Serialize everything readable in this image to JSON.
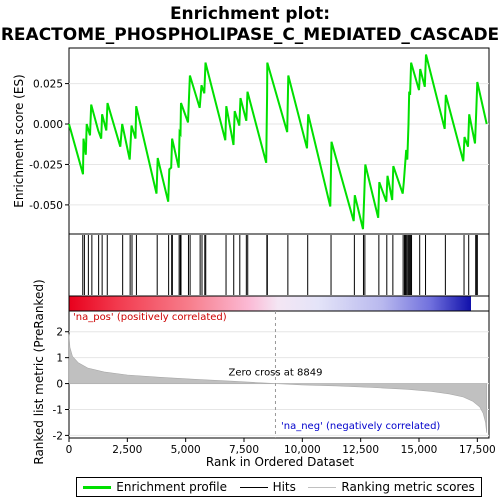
{
  "chart_data": {
    "type": "line",
    "title_line1": "Enrichment plot:",
    "title_line2": "REACTOME_PHOSPHOLIPASE_C_MEDIATED_CASCADE",
    "top_panel": {
      "ylabel": "Enrichment score (ES)",
      "ylim": [
        -0.068,
        0.047
      ],
      "yticks": [
        0.025,
        0.0,
        -0.025,
        -0.05
      ],
      "ytick_labels": [
        "0.025",
        "0.000",
        "-0.025",
        "-0.050"
      ],
      "series": {
        "name": "Enrichment profile",
        "color": "#00e000",
        "points": [
          [
            0,
            0.0
          ],
          [
            600,
            -0.031
          ],
          [
            620,
            -0.009
          ],
          [
            720,
            -0.019
          ],
          [
            760,
            0.0
          ],
          [
            900,
            -0.007
          ],
          [
            950,
            0.012
          ],
          [
            1250,
            -0.004
          ],
          [
            1380,
            -0.009
          ],
          [
            1420,
            0.006
          ],
          [
            1600,
            -0.004
          ],
          [
            1650,
            0.013
          ],
          [
            2200,
            -0.014
          ],
          [
            2280,
            0.0
          ],
          [
            2600,
            -0.022
          ],
          [
            2680,
            -0.001
          ],
          [
            2850,
            -0.009
          ],
          [
            2880,
            0.011
          ],
          [
            3750,
            -0.043
          ],
          [
            3800,
            -0.021
          ],
          [
            4250,
            -0.048
          ],
          [
            4300,
            -0.028
          ],
          [
            4380,
            -0.027
          ],
          [
            4420,
            -0.009
          ],
          [
            4700,
            -0.027
          ],
          [
            4740,
            -0.005
          ],
          [
            4780,
            -0.006
          ],
          [
            4800,
            0.013
          ],
          [
            5100,
            0.001
          ],
          [
            5180,
            0.03
          ],
          [
            5600,
            0.01
          ],
          [
            5680,
            0.024
          ],
          [
            5800,
            0.019
          ],
          [
            5850,
            0.038
          ],
          [
            6700,
            -0.01
          ],
          [
            6740,
            0.011
          ],
          [
            7050,
            -0.013
          ],
          [
            7100,
            0.008
          ],
          [
            7300,
            -0.001
          ],
          [
            7350,
            0.016
          ],
          [
            7600,
            0.002
          ],
          [
            7650,
            0.02
          ],
          [
            8450,
            -0.024
          ],
          [
            8490,
            0.018
          ],
          [
            8500,
            0.038
          ],
          [
            9350,
            -0.005
          ],
          [
            9400,
            0.03
          ],
          [
            10200,
            -0.015
          ],
          [
            10250,
            0.006
          ],
          [
            11200,
            -0.051
          ],
          [
            11250,
            -0.011
          ],
          [
            12200,
            -0.06
          ],
          [
            12250,
            -0.044
          ],
          [
            12600,
            -0.065
          ],
          [
            12650,
            -0.045
          ],
          [
            12700,
            -0.025
          ],
          [
            13250,
            -0.058
          ],
          [
            13300,
            -0.036
          ],
          [
            13600,
            -0.048
          ],
          [
            13650,
            -0.032
          ],
          [
            13850,
            -0.047
          ],
          [
            13900,
            -0.026
          ],
          [
            14300,
            -0.043
          ],
          [
            14350,
            -0.036
          ],
          [
            14400,
            -0.026
          ],
          [
            14450,
            -0.016
          ],
          [
            14500,
            -0.022
          ],
          [
            14550,
            0.0
          ],
          [
            14580,
            0.02
          ],
          [
            14620,
            0.018
          ],
          [
            14660,
            0.038
          ],
          [
            15000,
            0.021
          ],
          [
            15050,
            0.034
          ],
          [
            15250,
            0.023
          ],
          [
            15300,
            0.043
          ],
          [
            16100,
            -0.003
          ],
          [
            16150,
            0.018
          ],
          [
            16900,
            -0.023
          ],
          [
            16950,
            -0.008
          ],
          [
            17100,
            -0.014
          ],
          [
            17150,
            0.006
          ],
          [
            17400,
            -0.012
          ],
          [
            17450,
            0.007
          ],
          [
            17500,
            0.026
          ],
          [
            17900,
            0.0
          ]
        ]
      }
    },
    "hits": [
      590,
      660,
      830,
      980,
      1270,
      1420,
      1640,
      2300,
      2620,
      2700,
      2890,
      3780,
      4270,
      4400,
      4430,
      4720,
      4770,
      4800,
      5120,
      5190,
      5620,
      5700,
      5820,
      5860,
      6730,
      7060,
      7320,
      7600,
      7660,
      8480,
      8500,
      9380,
      10230,
      11230,
      12230,
      12620,
      12680,
      13280,
      13620,
      13880,
      14320,
      14380,
      14420,
      14470,
      14520,
      14560,
      14600,
      14640,
      14680,
      15030,
      15280,
      16130,
      16930,
      17130,
      17430,
      17470,
      17500
    ],
    "bottom_panel": {
      "ylabel": "Ranked list metric (PreRanked)",
      "ylim": [
        -2.1,
        2.8
      ],
      "yticks": [
        2,
        1,
        0,
        -1,
        -2
      ],
      "ytick_labels": [
        "2",
        "1",
        "0",
        "-1",
        "-2"
      ],
      "xlabel": "Rank in Ordered Dataset",
      "xticks": [
        0,
        2500,
        5000,
        7500,
        10000,
        12500,
        15000,
        17500
      ],
      "xtick_labels": [
        "0",
        "2,500",
        "5,000",
        "7,500",
        "10,000",
        "12,500",
        "15,000",
        "17,500"
      ],
      "metric_points": [
        [
          0,
          1.9
        ],
        [
          40,
          1.4
        ],
        [
          150,
          1.05
        ],
        [
          400,
          0.8
        ],
        [
          800,
          0.6
        ],
        [
          1500,
          0.45
        ],
        [
          2500,
          0.33
        ],
        [
          4000,
          0.24
        ],
        [
          5500,
          0.16
        ],
        [
          7000,
          0.09
        ],
        [
          8000,
          0.04
        ],
        [
          8849,
          0.0
        ],
        [
          10000,
          -0.05
        ],
        [
          11500,
          -0.09
        ],
        [
          13000,
          -0.15
        ],
        [
          14500,
          -0.22
        ],
        [
          15500,
          -0.3
        ],
        [
          16300,
          -0.4
        ],
        [
          16900,
          -0.52
        ],
        [
          17300,
          -0.68
        ],
        [
          17600,
          -0.9
        ],
        [
          17750,
          -1.15
        ],
        [
          17850,
          -1.5
        ],
        [
          17900,
          -1.9
        ]
      ],
      "zero_cross_label": "Zero cross at 8849",
      "zero_cross_rank": 8849,
      "pos_label": "'na_pos' (positively correlated)",
      "neg_label": "'na_neg' (negatively correlated)"
    },
    "xlim": [
      0,
      18000
    ],
    "n_genes": 17900,
    "colors": {
      "es_line": "#00e000",
      "hit_line": "#000000",
      "metric_fill": "#c0c0c0",
      "pos_label": "#cc0000",
      "neg_label": "#0000cc",
      "zero_line": "#999999"
    },
    "legend": [
      {
        "label": "Enrichment profile",
        "color": "#00e000"
      },
      {
        "label": "Hits",
        "color": "#000000"
      },
      {
        "label": "Ranking metric scores",
        "color": "#c0c0c0"
      }
    ]
  }
}
